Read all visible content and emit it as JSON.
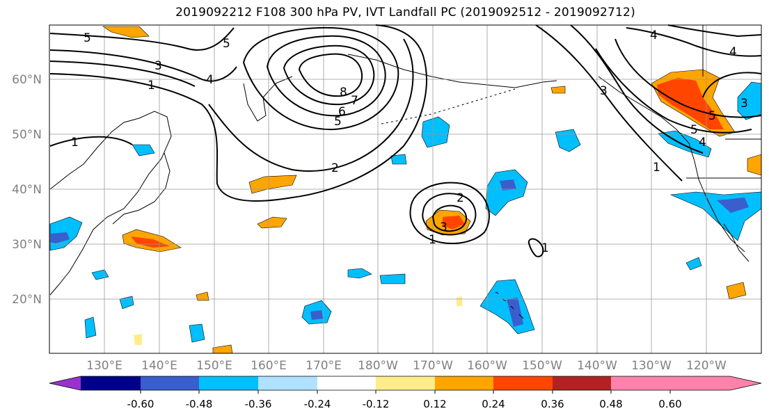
{
  "title": "2019092212 F108 300 hPa PV, IVT Landfall PC (2019092512 - 2019092712)",
  "map": {
    "lat_ticks": [
      "60°N",
      "50°N",
      "40°N",
      "30°N",
      "20°N"
    ],
    "lon_ticks": [
      "130°E",
      "140°E",
      "150°E",
      "160°E",
      "170°E",
      "180°W",
      "170°W",
      "160°W",
      "150°W",
      "140°W",
      "130°W",
      "120°W"
    ],
    "contour_labels": [
      "5",
      "5",
      "3",
      "4",
      "1",
      "1",
      "8",
      "7",
      "6",
      "5",
      "2",
      "2",
      "3",
      "1",
      "1",
      "4",
      "4",
      "3",
      "5",
      "5",
      "4",
      "1",
      "3"
    ]
  },
  "colorbar": {
    "ticks": [
      "-0.60",
      "-0.48",
      "-0.36",
      "-0.24",
      "-0.12",
      "0.12",
      "0.24",
      "0.36",
      "0.48",
      "0.60"
    ],
    "colors": [
      "#9932CC",
      "#00008B",
      "#3A5ECD",
      "#00BFFF",
      "#B0E2FF",
      "#FFFFFF",
      "#FFEC8B",
      "#FFA500",
      "#FF4500",
      "#B22222",
      "#FF82AB"
    ]
  }
}
